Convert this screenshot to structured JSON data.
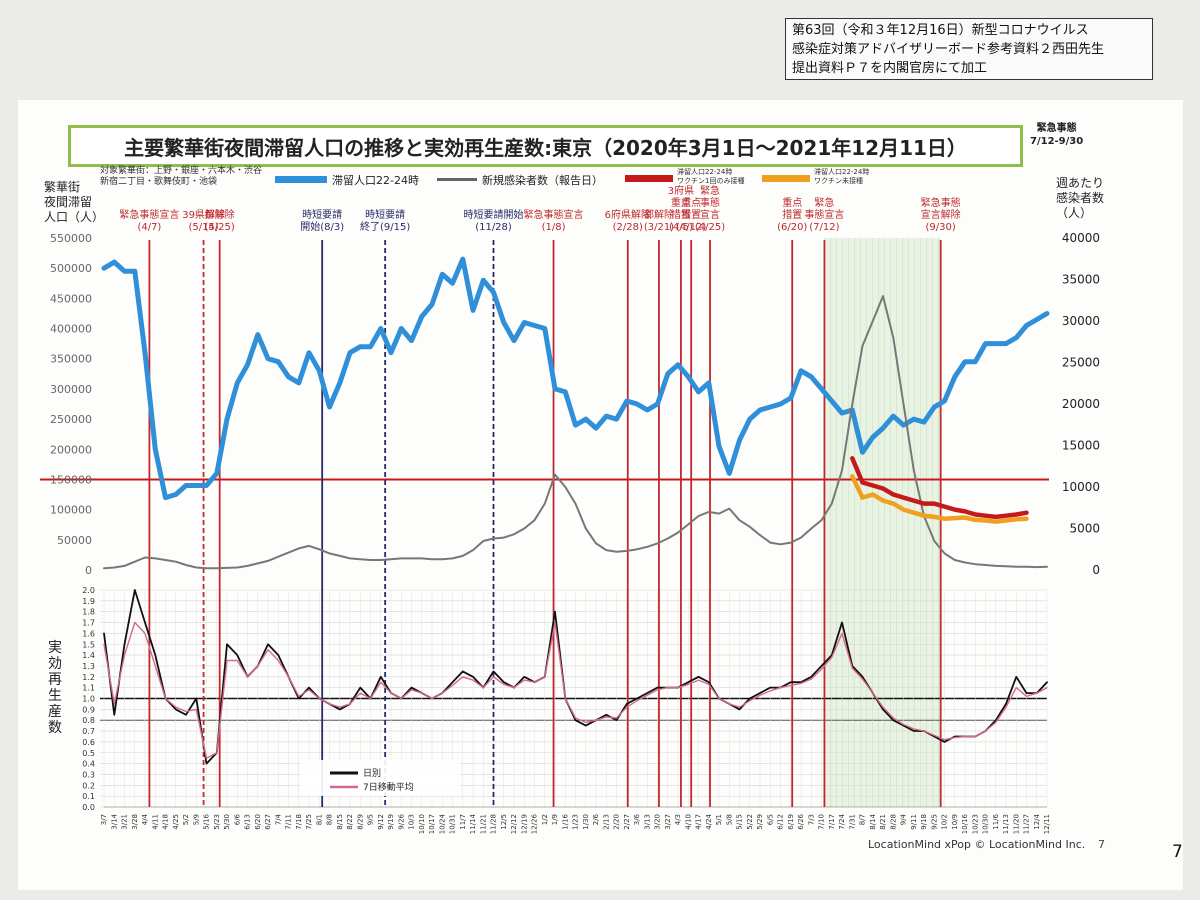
{
  "note_lines": [
    "第63回（令和３年12月16日）新型コロナウイルス",
    "感染症対策アドバイザリーボード参考資料２西田先生",
    "提出資料Ｐ７を内閣官房にて加工"
  ],
  "title": "主要繁華街夜間滞留人口の推移と実効再生産数:東京（2020年3月1日～2021年12月11日）",
  "corner_lines": [
    "緊急事態",
    "7/12-9/30"
  ],
  "target_areas": [
    "対象繁華街：上野・銀座・六本木・渋谷",
    "新宿二丁目・歌舞伎町・池袋"
  ],
  "left_axis_title": [
    "繁華街",
    "夜間滞留",
    "人口（人）"
  ],
  "right_axis_title": [
    "週あたり",
    "感染者数",
    "（人）"
  ],
  "r_axis_title": "実効再生産数",
  "legend": {
    "pop": "滞留人口22-24時",
    "cases": "新規感染者数（報告日）",
    "vax1": [
      "滞留人口22-24時",
      "ワクチン1回のみ接種"
    ],
    "vax0": [
      "滞留人口22-24時",
      "ワクチン未接種"
    ],
    "daily": "日別",
    "ma": "7日移動平均"
  },
  "events": [
    {
      "label": [
        "緊急事態宣言",
        "(4/7)"
      ],
      "date": "4/7",
      "color": "#c0282d",
      "style": "solid"
    },
    {
      "label": [
        "39県解除",
        "(5/14)"
      ],
      "date": "5/14",
      "color": "#c0282d",
      "style": "dash"
    },
    {
      "label": [
        "都解除",
        "(5/25)"
      ],
      "date": "5/25",
      "color": "#c0282d",
      "style": "solid"
    },
    {
      "label": [
        "時短要請",
        "開始(8/3)"
      ],
      "date": "8/3",
      "color": "#2a2a6a",
      "style": "solid"
    },
    {
      "label": [
        "時短要請",
        "終了(9/15)"
      ],
      "date": "9/15",
      "color": "#2a2a6a",
      "style": "dash"
    },
    {
      "label": [
        "時短要請開始",
        "(11/28)"
      ],
      "date": "11/28",
      "color": "#2a2a6a",
      "style": "dash"
    },
    {
      "label": [
        "緊急事態宣言",
        "(1/8)"
      ],
      "date": "1/8",
      "color": "#c0282d",
      "style": "solid"
    },
    {
      "label": [
        "6府県解除",
        "(2/28)"
      ],
      "date": "2/28",
      "color": "#c0282d",
      "style": "solid"
    },
    {
      "label": [
        "都解除",
        "(3/21)"
      ],
      "date": "3/21",
      "color": "#c0282d",
      "style": "solid"
    },
    {
      "label": [
        "3府県",
        "重点",
        "措置",
        "(4/5)"
      ],
      "date": "4/5",
      "color": "#c0282d",
      "style": "solid"
    },
    {
      "label": [
        "重点",
        "措置",
        "(4/12)"
      ],
      "date": "4/12",
      "color": "#c0282d",
      "style": "solid"
    },
    {
      "label": [
        "緊急",
        "事態",
        "宣言",
        "(4/25)"
      ],
      "date": "4/25",
      "color": "#c0282d",
      "style": "solid"
    },
    {
      "label": [
        "重点",
        "措置",
        "(6/20)"
      ],
      "date": "6/20",
      "color": "#c0282d",
      "style": "solid"
    },
    {
      "label": [
        "緊急",
        "事態宣言",
        "(7/12)"
      ],
      "date": "7/12",
      "color": "#c0282d",
      "style": "solid"
    },
    {
      "label": [
        "緊急事態",
        "宣言解除",
        "(9/30)"
      ],
      "date": "9/30",
      "color": "#c0282d",
      "style": "solid"
    }
  ],
  "footer": "LocationMind xPop © LocationMind Inc.",
  "slide_number": "7",
  "page_number": "7",
  "chart_data": {
    "type": "line",
    "x_ticks": [
      "3/7",
      "3/14",
      "3/21",
      "3/28",
      "4/4",
      "4/11",
      "4/18",
      "4/25",
      "5/2",
      "5/9",
      "5/16",
      "5/23",
      "5/30",
      "6/6",
      "6/13",
      "6/20",
      "6/27",
      "7/4",
      "7/11",
      "7/18",
      "7/25",
      "8/1",
      "8/8",
      "8/15",
      "8/22",
      "8/29",
      "9/5",
      "9/12",
      "9/19",
      "9/26",
      "10/3",
      "10/10",
      "10/17",
      "10/24",
      "10/31",
      "11/7",
      "11/14",
      "11/21",
      "11/28",
      "12/5",
      "12/12",
      "12/19",
      "12/26",
      "1/2",
      "1/9",
      "1/16",
      "1/23",
      "1/30",
      "2/6",
      "2/13",
      "2/20",
      "2/27",
      "3/6",
      "3/13",
      "3/20",
      "3/27",
      "4/3",
      "4/10",
      "4/17",
      "4/24",
      "5/1",
      "5/8",
      "5/15",
      "5/22",
      "5/29",
      "6/5",
      "6/12",
      "6/19",
      "6/26",
      "7/3",
      "7/10",
      "7/17",
      "7/24",
      "7/31",
      "8/7",
      "8/14",
      "8/21",
      "8/28",
      "9/4",
      "9/11",
      "9/18",
      "9/25",
      "10/2",
      "10/9",
      "10/16",
      "10/23",
      "10/30",
      "11/6",
      "11/13",
      "11/20",
      "11/27",
      "12/4",
      "12/11"
    ],
    "left_axis": {
      "min": 0,
      "max": 550000,
      "ticks": [
        0,
        50000,
        100000,
        150000,
        200000,
        250000,
        300000,
        350000,
        400000,
        450000,
        500000,
        550000
      ]
    },
    "right_axis": {
      "min": 0,
      "max": 40000,
      "ticks": [
        0,
        5000,
        10000,
        15000,
        20000,
        25000,
        30000,
        35000,
        40000
      ]
    },
    "r_axis": {
      "min": 0,
      "max": 2.0,
      "ticks": [
        "0.0",
        "0.1",
        "0.2",
        "0.3",
        "0.4",
        "0.5",
        "0.6",
        "0.7",
        "0.8",
        "0.9",
        "1.0",
        "1.1",
        "1.2",
        "1.3",
        "1.4",
        "1.5",
        "1.6",
        "1.7",
        "1.8",
        "1.9",
        "2.0"
      ]
    },
    "reference_lines": {
      "pop": 150000,
      "r": [
        1.0,
        0.8
      ]
    },
    "shaded_period": [
      "7/12",
      "9/30"
    ],
    "series": [
      {
        "name": "滞留人口22-24時",
        "axis": "left",
        "color": "#2f8fd8",
        "values": [
          500000,
          510000,
          495000,
          495000,
          360000,
          200000,
          120000,
          125000,
          140000,
          140000,
          140000,
          160000,
          250000,
          310000,
          340000,
          390000,
          350000,
          345000,
          320000,
          310000,
          360000,
          330000,
          270000,
          310000,
          360000,
          370000,
          370000,
          400000,
          360000,
          400000,
          380000,
          420000,
          440000,
          490000,
          475000,
          515000,
          430000,
          480000,
          460000,
          410000,
          380000,
          410000,
          405000,
          400000,
          300000,
          295000,
          240000,
          250000,
          235000,
          255000,
          250000,
          280000,
          275000,
          265000,
          275000,
          325000,
          340000,
          320000,
          295000,
          310000,
          205000,
          160000,
          215000,
          250000,
          265000,
          270000,
          275000,
          285000,
          330000,
          320000,
          300000,
          280000,
          260000,
          265000,
          195000,
          220000,
          235000,
          255000,
          240000,
          250000,
          245000,
          270000,
          280000,
          320000,
          345000,
          345000,
          375000,
          375000,
          375000,
          385000,
          405000,
          415000,
          425000
        ]
      },
      {
        "name": "新規感染者数（報告日）",
        "axis": "right",
        "color": "#777777",
        "values": [
          200,
          300,
          500,
          1000,
          1500,
          1400,
          1200,
          1000,
          600,
          300,
          200,
          200,
          250,
          300,
          500,
          800,
          1100,
          1600,
          2100,
          2600,
          2900,
          2500,
          2000,
          1700,
          1400,
          1300,
          1200,
          1200,
          1300,
          1400,
          1400,
          1400,
          1300,
          1300,
          1400,
          1700,
          2400,
          3500,
          3800,
          3900,
          4300,
          5000,
          6000,
          8000,
          11500,
          10000,
          8000,
          5000,
          3200,
          2400,
          2200,
          2300,
          2500,
          2800,
          3200,
          3800,
          4500,
          5500,
          6500,
          7000,
          6800,
          7400,
          6000,
          5200,
          4200,
          3300,
          3100,
          3300,
          3900,
          5000,
          6000,
          8000,
          12000,
          20000,
          27000,
          30000,
          33000,
          28000,
          20000,
          12000,
          6500,
          3500,
          2000,
          1200,
          900,
          700,
          600,
          500,
          450,
          400,
          380,
          350,
          380
        ]
      },
      {
        "name": "滞留人口22-24時 ワクチン1回のみ接種",
        "axis": "left",
        "color": "#c41a1a",
        "start_index": 73,
        "values": [
          185000,
          145000,
          140000,
          135000,
          125000,
          120000,
          115000,
          110000,
          110000,
          105000,
          100000,
          97000,
          92000,
          90000,
          88000,
          90000,
          92000,
          95000
        ]
      },
      {
        "name": "滞留人口22-24時 ワクチン未接種",
        "axis": "left",
        "color": "#f0a020",
        "start_index": 73,
        "values": [
          155000,
          120000,
          125000,
          115000,
          110000,
          100000,
          95000,
          90000,
          88000,
          85000,
          86000,
          87000,
          83000,
          82000,
          80000,
          82000,
          84000,
          85000
        ]
      },
      {
        "name": "日別",
        "axis": "r",
        "color": "#111111",
        "values": [
          1.6,
          0.85,
          1.5,
          2.0,
          1.7,
          1.4,
          1.0,
          0.9,
          0.85,
          1.0,
          0.4,
          0.5,
          1.5,
          1.4,
          1.2,
          1.3,
          1.5,
          1.4,
          1.2,
          1.0,
          1.1,
          1.0,
          0.95,
          0.9,
          0.95,
          1.1,
          1.0,
          1.2,
          1.05,
          1.0,
          1.1,
          1.05,
          1.0,
          1.05,
          1.15,
          1.25,
          1.2,
          1.1,
          1.25,
          1.15,
          1.1,
          1.2,
          1.15,
          1.2,
          1.8,
          1.0,
          0.8,
          0.75,
          0.8,
          0.85,
          0.8,
          0.95,
          1.0,
          1.05,
          1.1,
          1.1,
          1.1,
          1.15,
          1.2,
          1.15,
          1.0,
          0.95,
          0.9,
          1.0,
          1.05,
          1.1,
          1.1,
          1.15,
          1.15,
          1.2,
          1.3,
          1.4,
          1.7,
          1.3,
          1.2,
          1.05,
          0.9,
          0.8,
          0.75,
          0.7,
          0.7,
          0.65,
          0.6,
          0.65,
          0.65,
          0.65,
          0.7,
          0.8,
          0.95,
          1.2,
          1.05,
          1.05,
          1.15
        ]
      },
      {
        "name": "7日移動平均",
        "axis": "r",
        "color": "#d36a8e",
        "values": [
          1.5,
          0.95,
          1.4,
          1.7,
          1.6,
          1.3,
          1.0,
          0.92,
          0.88,
          0.9,
          0.45,
          0.5,
          1.35,
          1.35,
          1.2,
          1.3,
          1.45,
          1.35,
          1.2,
          1.02,
          1.08,
          1.0,
          0.95,
          0.92,
          0.95,
          1.05,
          1.0,
          1.15,
          1.05,
          1.0,
          1.08,
          1.05,
          1.0,
          1.05,
          1.12,
          1.2,
          1.17,
          1.1,
          1.2,
          1.13,
          1.1,
          1.17,
          1.15,
          1.2,
          1.7,
          1.0,
          0.82,
          0.78,
          0.8,
          0.83,
          0.82,
          0.92,
          0.98,
          1.03,
          1.08,
          1.1,
          1.1,
          1.13,
          1.17,
          1.13,
          1.0,
          0.95,
          0.92,
          0.98,
          1.03,
          1.07,
          1.1,
          1.12,
          1.14,
          1.18,
          1.27,
          1.38,
          1.6,
          1.28,
          1.18,
          1.05,
          0.92,
          0.82,
          0.76,
          0.72,
          0.7,
          0.66,
          0.62,
          0.64,
          0.65,
          0.65,
          0.7,
          0.78,
          0.92,
          1.1,
          1.02,
          1.05,
          1.1
        ]
      }
    ]
  }
}
